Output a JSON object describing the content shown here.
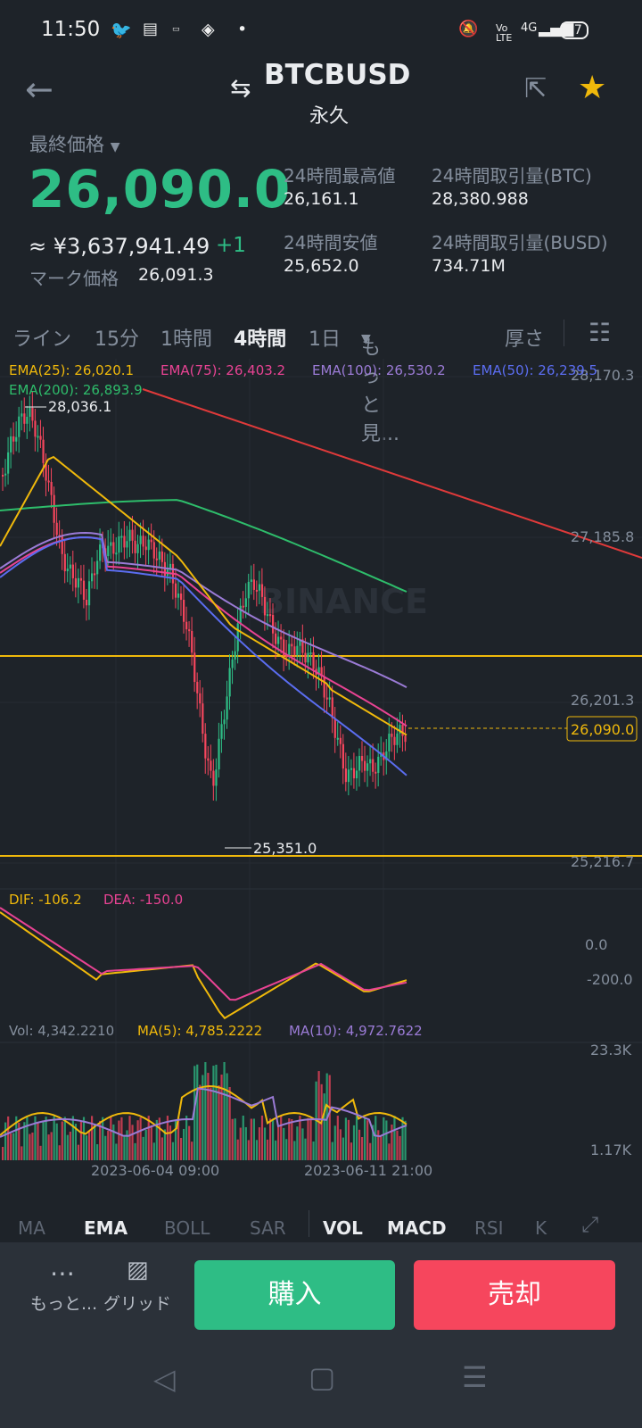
{
  "status_bar": {
    "time": "11:50",
    "battery": "97",
    "signal": "4G"
  },
  "header": {
    "title": "BTCBUSD",
    "subtitle": "永久"
  },
  "price": {
    "label": "最終価格",
    "last": "26,090.0",
    "fiat": "≈ ¥3,637,941.49",
    "change": "+1",
    "mark_label": "マーク価格",
    "mark_value": "26,091.3"
  },
  "stats": [
    {
      "label": "24時間最高値",
      "value": "26,161.1"
    },
    {
      "label": "24時間取引量(BTC)",
      "value": "28,380.988"
    },
    {
      "label": "24時間安値",
      "value": "25,652.0"
    },
    {
      "label": "24時間取引量(BUSD)",
      "value": "734.71M"
    }
  ],
  "timeframes": [
    "ライン",
    "15分",
    "1時間",
    "4時間",
    "1日",
    "もっと見...",
    "厚さ"
  ],
  "active_timeframe": "4時間",
  "ema_legend": [
    {
      "label": "EMA(25): 26,020.1",
      "color": "#f0b90b"
    },
    {
      "label": "EMA(75): 26,403.2",
      "color": "#e84393"
    },
    {
      "label": "EMA(100): 26,530.2",
      "color": "#9b7bd6"
    },
    {
      "label": "EMA(50): 26,239.5",
      "color": "#5b6df0"
    },
    {
      "label": "EMA(200): 26,893.9",
      "color": "#2ebd6b"
    }
  ],
  "price_axis": [
    "28,170.3",
    "27,185.8",
    "26,201.3",
    "25,216.7"
  ],
  "current_price_tag": "26,090.0",
  "annotations": {
    "high": "28,036.1",
    "low": "25,351.0"
  },
  "watermark": "BINANCE",
  "macd": {
    "dif": "DIF: -106.2",
    "dea": "DEA: -150.0",
    "axis": [
      "0.0",
      "-200.0"
    ]
  },
  "volume": {
    "vol": "Vol: 4,342.2210",
    "ma5": "MA(5): 4,785.2222",
    "ma10": "MA(10): 4,972.7622",
    "axis": [
      "23.3K",
      "1.17K"
    ]
  },
  "dates": [
    "2023-06-04 09:00",
    "2023-06-11 21:00"
  ],
  "indicator_tabs": [
    "MA",
    "EMA",
    "BOLL",
    "SAR",
    "VOL",
    "MACD",
    "RSI",
    "K"
  ],
  "active_indicators": [
    "EMA",
    "VOL",
    "MACD"
  ],
  "bottom": {
    "more": "もっと...",
    "grid": "グリッド",
    "buy": "購入",
    "sell": "売却"
  },
  "colors": {
    "up": "#2ebd85",
    "down": "#f6465d",
    "bg": "#1e2329",
    "accent": "#f0b90b"
  }
}
